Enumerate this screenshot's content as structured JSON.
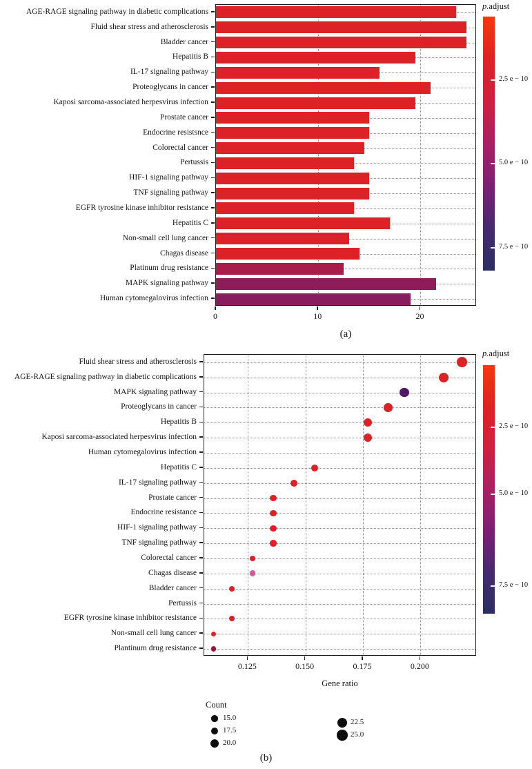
{
  "panels": {
    "a": {
      "label": "(a)"
    },
    "b": {
      "label": "(b)"
    }
  },
  "chart_data": [
    {
      "id": "kegg-enrichment-barplot",
      "type": "bar",
      "orientation": "horizontal",
      "xlabel": "",
      "xlim": [
        0,
        25.5
      ],
      "xticks": [
        0,
        10,
        20
      ],
      "xtick_labels": [
        "0",
        "10",
        "20"
      ],
      "grid": "dotted",
      "categories": [
        "AGE-RAGE signaling pathway in diabetic complications",
        "Fluid shear stress and atherosclerosis",
        "Bladder cancer",
        "Hepatitis B",
        "IL-17 signaling pathway",
        "Proteoglycans in cancer",
        "Kaposi sarcoma-associated herpesvirus infection",
        "Prostate cancer",
        "Endocrine resistsnce",
        "Colorectal cancer",
        "Pertussis",
        "HIF-1 signaling pathway",
        "TNF signaling pathway",
        "EGFR tyrosine kinase inhibitor resistance",
        "Hepatitis C",
        "Non-small cell lung cancer",
        "Chagas disease",
        "Platinum drug resistance",
        "MAPK signaling pathway",
        "Human cytomegalovirus infection"
      ],
      "values": [
        23.5,
        24.5,
        24.5,
        19.5,
        16,
        21,
        19.5,
        15,
        15,
        14.5,
        13.5,
        15,
        15,
        13.5,
        17,
        13,
        14,
        12.5,
        21.5,
        19
      ],
      "bar_colors": [
        "#dc2127",
        "#dc2127",
        "#dc2127",
        "#dc2127",
        "#dc2127",
        "#dc2127",
        "#dc2127",
        "#dc2127",
        "#dc2127",
        "#dc2127",
        "#dc2127",
        "#dc2127",
        "#dc2127",
        "#dc2127",
        "#dc2127",
        "#dc2127",
        "#dc2127",
        "#aa1d4b",
        "#8e1c58",
        "#871c5e"
      ],
      "legend": {
        "title": "p.adjust",
        "gradient": [
          "#f5380d",
          "#e02125",
          "#d11f3f",
          "#a92063",
          "#7c2073",
          "#452a6e",
          "#2c2f62"
        ],
        "ticks": [
          {
            "label": "2.5 e − 10",
            "pos": 0.25
          },
          {
            "label": "5.0 e − 10",
            "pos": 0.58
          },
          {
            "label": "7.5 e − 10",
            "pos": 0.91
          }
        ]
      }
    },
    {
      "id": "kegg-enrichment-dotplot",
      "type": "scatter",
      "xlabel": "Gene ratio",
      "xlim": [
        0.106,
        0.2245
      ],
      "xticks": [
        0.125,
        0.15,
        0.175,
        0.2
      ],
      "xtick_labels": [
        "0.125",
        "0.150",
        "0.175",
        "0.200"
      ],
      "grid": "dotted",
      "categories": [
        "Fluid shear stress and atherosclerosis",
        "AGE-RAGE signaling pathway in diabetic complications",
        "MAPK signaling pathway",
        "Proteoglycans in cancer",
        "Hepatitis B",
        "Kaposi sarcoma-associated herpesvirus infection",
        "Human cytomegalovirus infection",
        "Hepatitis C",
        "IL-17 signaling pathway",
        "Prostate cancer",
        "Endocrine resistance",
        "HIF-1 signaling pathway",
        "TNF signaling pathway",
        "Colorectal cancer",
        "Chagas disease",
        "Bladder cancer",
        "Pertussis",
        "EGFR tyrosine kinase inhibitor resistance",
        "Non-small cell lung cancer",
        "Plantinum drug resistance"
      ],
      "x": [
        0.218,
        0.21,
        0.193,
        0.186,
        0.177,
        0.177,
        null,
        0.154,
        0.145,
        0.136,
        0.136,
        0.136,
        0.136,
        0.127,
        0.127,
        0.118,
        null,
        0.118,
        0.11,
        0.11
      ],
      "count": [
        24,
        23,
        21,
        20,
        19.5,
        19.5,
        null,
        17,
        16,
        15,
        15,
        15,
        15,
        14,
        14,
        13,
        null,
        13,
        12,
        12
      ],
      "colors": [
        "#dc2127",
        "#dc2127",
        "#4f1967",
        "#dc2127",
        "#dc2127",
        "#dc2127",
        null,
        "#dc2127",
        "#dc2127",
        "#dc2127",
        "#dc2127",
        "#dc2127",
        "#dc2127",
        "#dc2127",
        "#d05c9b",
        "#dc2127",
        null,
        "#dc2127",
        "#dc2127",
        "#97173f"
      ],
      "legend": {
        "title": "p.adjust",
        "gradient": [
          "#f5380d",
          "#e02125",
          "#d11f3f",
          "#a92063",
          "#7c2073",
          "#452a6e",
          "#2c2f62"
        ],
        "ticks": [
          {
            "label": "2.5 e − 10",
            "pos": 0.25
          },
          {
            "label": "5.0 e − 10",
            "pos": 0.52
          },
          {
            "label": "7.5 e − 10",
            "pos": 0.89
          }
        ]
      },
      "size_legend": {
        "title": "Count",
        "items": [
          "15.0",
          "17.5",
          "20.0",
          "22.5",
          "25.0"
        ]
      }
    }
  ]
}
